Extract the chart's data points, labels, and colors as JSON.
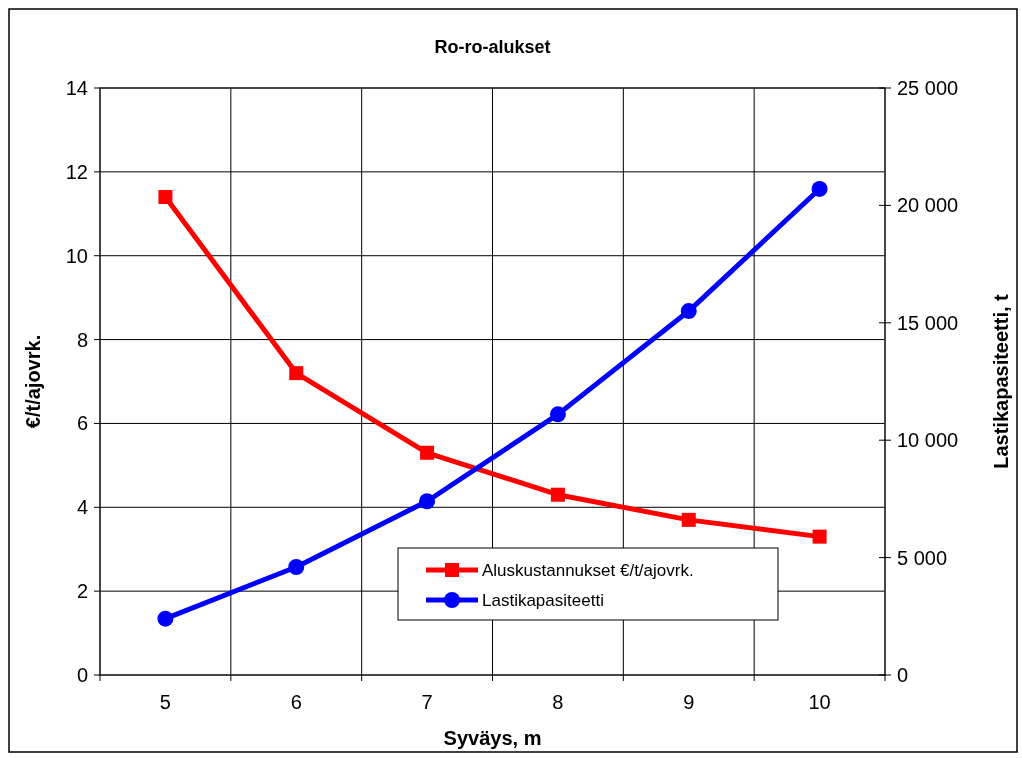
{
  "chart_data": {
    "type": "line",
    "title": "Ro-ro-alukset",
    "xlabel": "Syväys, m",
    "ylabel": "€/t/ajovrk.",
    "y2label": "Lastikapasiteetti, t",
    "categories": [
      "5",
      "6",
      "7",
      "8",
      "9",
      "10"
    ],
    "series": [
      {
        "name": "Aluskustannukset €/t/ajovrk.",
        "color": "#ff0000",
        "marker": "square",
        "values": [
          11.4,
          7.2,
          5.3,
          4.3,
          3.7,
          3.3
        ]
      },
      {
        "name": "Lastikapasiteetti",
        "color": "#0000ff",
        "marker": "circle",
        "axis": "y2",
        "values": [
          2400,
          4600,
          7400,
          11100,
          15500,
          20700
        ]
      }
    ],
    "ylim": [
      0,
      14
    ],
    "yticks": [
      0,
      2,
      4,
      6,
      8,
      10,
      12,
      14
    ],
    "y2lim": [
      0,
      25000
    ],
    "y2ticks": [
      {
        "value": 0,
        "label": "0"
      },
      {
        "value": 5000,
        "label": "5 000"
      },
      {
        "value": 10000,
        "label": "10 000"
      },
      {
        "value": 15000,
        "label": "15 000"
      },
      {
        "value": 20000,
        "label": "20 000"
      },
      {
        "value": 25000,
        "label": "25 000"
      }
    ],
    "grid": true,
    "legend": "bottom",
    "line_style": "solid"
  }
}
